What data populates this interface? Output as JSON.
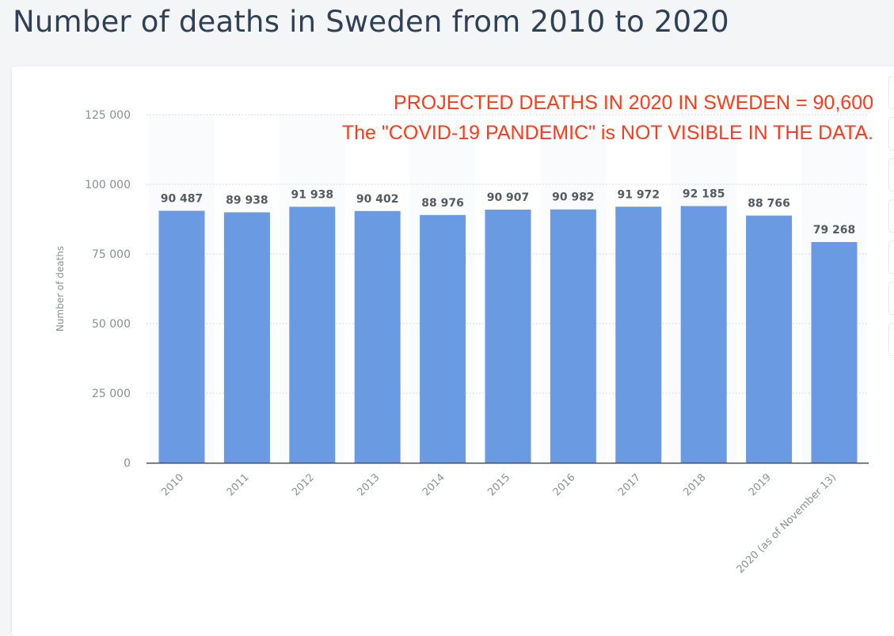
{
  "page": {
    "title": "Number of deaths in Sweden from 2010 to 2020"
  },
  "annotations": {
    "line1": "PROJECTED DEATHS IN 2020 IN SWEDEN = 90,600",
    "line2": "The \"COVID-19 PANDEMIC\" is NOT VISIBLE IN THE DATA."
  },
  "colors": {
    "bar": "#6a9ae2",
    "annotation": "#ff3b1a",
    "title": "#2e4156"
  },
  "chart_data": {
    "type": "bar",
    "title": "",
    "xlabel": "",
    "ylabel": "Number of deaths",
    "ylim": [
      0,
      125000
    ],
    "yticks": [
      0,
      25000,
      50000,
      75000,
      100000,
      125000
    ],
    "ytick_labels": [
      "0",
      "25 000",
      "50 000",
      "75 000",
      "100 000",
      "125 000"
    ],
    "grid": true,
    "categories": [
      "2010",
      "2011",
      "2012",
      "2013",
      "2014",
      "2015",
      "2016",
      "2017",
      "2018",
      "2019",
      "2020 (as of November 13)"
    ],
    "values": [
      90487,
      89938,
      91938,
      90402,
      88976,
      90907,
      90982,
      91972,
      92185,
      88766,
      79268
    ],
    "value_labels": [
      "90 487",
      "89 938",
      "91 938",
      "90 402",
      "88 976",
      "90 907",
      "90 982",
      "91 972",
      "92 185",
      "88 766",
      "79 268"
    ]
  }
}
